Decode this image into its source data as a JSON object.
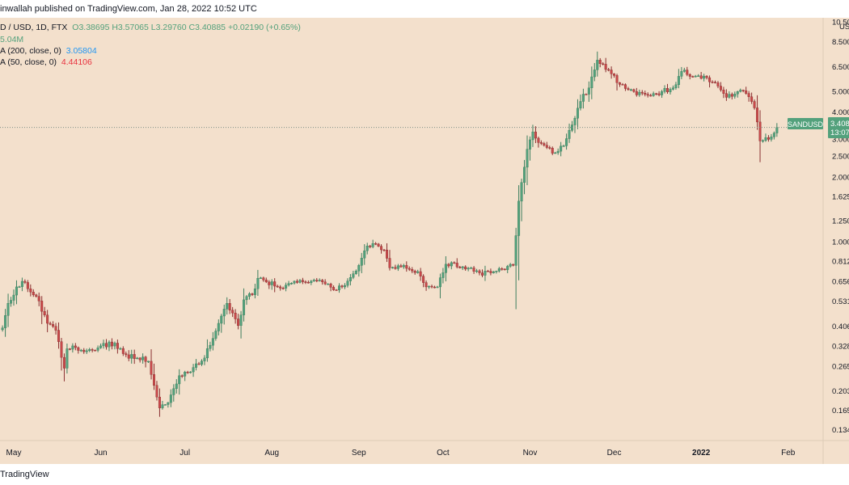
{
  "header": {
    "publisher": "inwallah published on TradingView.com, Jan 28, 2022 10:52 UTC"
  },
  "legend": {
    "symbol_line_prefix": "D / USD, 1D, FTX",
    "ohlc": "O3.38695  H3.57065  L3.29760  C3.40885  +0.02190 (+0.65%)",
    "volume": "5.04M",
    "ma200_label": "A (200, close, 0)",
    "ma200_value": "3.05804",
    "ma50_label": "A (50, close, 0)",
    "ma50_value": "4.44106"
  },
  "price_scale": {
    "currency": "US",
    "labels": [
      "10.50",
      "8.500",
      "6.500",
      "5.000",
      "4.000",
      "3.000",
      "2.500",
      "2.000",
      "1.625",
      "1.250",
      "1.000",
      "0.812",
      "0.656",
      "0.531",
      "0.406",
      "0.328",
      "0.265",
      "0.203",
      "0.165",
      "0.134"
    ]
  },
  "price_tag": {
    "symbol": "SANDUSD",
    "price": "3.408",
    "countdown": "13:07"
  },
  "footer": {
    "brand": "TradingView"
  },
  "colors": {
    "up": "#53a17c",
    "down": "#c9494a",
    "background": "#f3e0cc",
    "ma200": "#2196f3",
    "ma50": "#e8313d"
  },
  "chart_data": {
    "type": "candlestick",
    "symbol": "SANDUSD",
    "exchange": "FTX",
    "interval": "1D",
    "y_scale": "log",
    "ylim": [
      0.12,
      11
    ],
    "x_ticks": [
      "May",
      "Jun",
      "Jul",
      "Aug",
      "Sep",
      "Oct",
      "Nov",
      "Dec",
      "2022",
      "Feb"
    ],
    "last_price": 3.40885,
    "anchors": [
      [
        "2021-04-27",
        0.4
      ],
      [
        "2021-04-29",
        0.52
      ],
      [
        "2021-05-02",
        0.62
      ],
      [
        "2021-05-05",
        0.65
      ],
      [
        "2021-05-09",
        0.56
      ],
      [
        "2021-05-13",
        0.42
      ],
      [
        "2021-05-16",
        0.39
      ],
      [
        "2021-05-19",
        0.26
      ],
      [
        "2021-05-20",
        0.32
      ],
      [
        "2021-05-22",
        0.33
      ],
      [
        "2021-05-26",
        0.31
      ],
      [
        "2021-06-01",
        0.33
      ],
      [
        "2021-06-06",
        0.34
      ],
      [
        "2021-06-10",
        0.3
      ],
      [
        "2021-06-14",
        0.29
      ],
      [
        "2021-06-18",
        0.28
      ],
      [
        "2021-06-22",
        0.17
      ],
      [
        "2021-06-25",
        0.18
      ],
      [
        "2021-06-29",
        0.24
      ],
      [
        "2021-07-03",
        0.25
      ],
      [
        "2021-07-08",
        0.29
      ],
      [
        "2021-07-13",
        0.42
      ],
      [
        "2021-07-16",
        0.52
      ],
      [
        "2021-07-20",
        0.41
      ],
      [
        "2021-07-22",
        0.54
      ],
      [
        "2021-07-25",
        0.57
      ],
      [
        "2021-07-27",
        0.68
      ],
      [
        "2021-08-03",
        0.62
      ],
      [
        "2021-08-10",
        0.65
      ],
      [
        "2021-08-15",
        0.66
      ],
      [
        "2021-08-20",
        0.64
      ],
      [
        "2021-08-24",
        0.6
      ],
      [
        "2021-08-28",
        0.66
      ],
      [
        "2021-09-01",
        0.78
      ],
      [
        "2021-09-04",
        0.96
      ],
      [
        "2021-09-07",
        0.98
      ],
      [
        "2021-09-10",
        0.92
      ],
      [
        "2021-09-12",
        0.76
      ],
      [
        "2021-09-17",
        0.78
      ],
      [
        "2021-09-22",
        0.73
      ],
      [
        "2021-09-25",
        0.62
      ],
      [
        "2021-09-29",
        0.62
      ],
      [
        "2021-10-02",
        0.79
      ],
      [
        "2021-10-05",
        0.8
      ],
      [
        "2021-10-09",
        0.75
      ],
      [
        "2021-10-14",
        0.72
      ],
      [
        "2021-10-18",
        0.72
      ],
      [
        "2021-10-22",
        0.75
      ],
      [
        "2021-10-26",
        0.78
      ],
      [
        "2021-10-28",
        1.55
      ],
      [
        "2021-10-31",
        2.7
      ],
      [
        "2021-11-02",
        3.25
      ],
      [
        "2021-11-04",
        2.9
      ],
      [
        "2021-11-07",
        2.75
      ],
      [
        "2021-11-10",
        2.6
      ],
      [
        "2021-11-13",
        2.8
      ],
      [
        "2021-11-16",
        3.5
      ],
      [
        "2021-11-19",
        4.5
      ],
      [
        "2021-11-22",
        5.2
      ],
      [
        "2021-11-25",
        7.0
      ],
      [
        "2021-11-27",
        6.7
      ],
      [
        "2021-11-29",
        6.3
      ],
      [
        "2021-12-03",
        5.4
      ],
      [
        "2021-12-08",
        5.0
      ],
      [
        "2021-12-13",
        4.8
      ],
      [
        "2021-12-18",
        5.0
      ],
      [
        "2021-12-22",
        5.2
      ],
      [
        "2021-12-25",
        6.2
      ],
      [
        "2021-12-30",
        5.9
      ],
      [
        "2022-01-03",
        5.8
      ],
      [
        "2022-01-07",
        5.3
      ],
      [
        "2022-01-10",
        4.7
      ],
      [
        "2022-01-14",
        5.0
      ],
      [
        "2022-01-17",
        4.9
      ],
      [
        "2022-01-20",
        4.2
      ],
      [
        "2022-01-22",
        2.95
      ],
      [
        "2022-01-25",
        3.0
      ],
      [
        "2022-01-28",
        3.41
      ]
    ]
  }
}
